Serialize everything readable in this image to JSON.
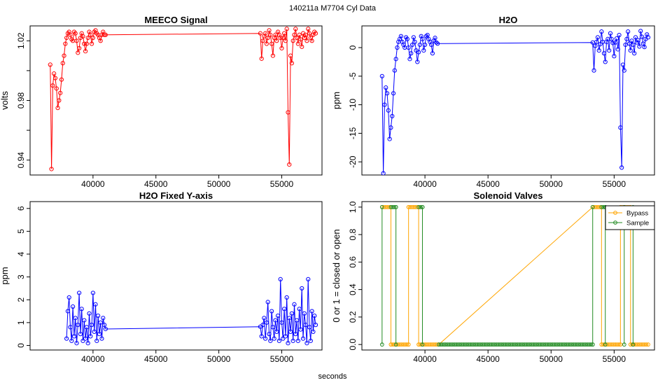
{
  "page": {
    "title": "140211a    M7704    Cyl Data",
    "xlabel": "seconds"
  },
  "chart_data": [
    {
      "id": "meeco",
      "type": "line",
      "title": "MEECO Signal",
      "xlabel": "",
      "ylabel": "volts",
      "color": "#ff0000",
      "xlim": [
        35000,
        58200
      ],
      "ylim": [
        0.93,
        1.03
      ],
      "xticks": [
        40000,
        45000,
        50000,
        55000
      ],
      "xtick_labels": [
        "40000",
        "45000",
        "50000",
        "55000"
      ],
      "yticks": [
        0.94,
        0.96,
        0.98,
        1.0,
        1.02
      ],
      "ytick_labels": [
        "0.94",
        "",
        "0.98",
        "",
        "1.02"
      ],
      "x": [
        36600,
        36700,
        36800,
        36900,
        37000,
        37100,
        37200,
        37300,
        37400,
        37500,
        37600,
        37700,
        37800,
        37900,
        38000,
        38100,
        38200,
        38300,
        38400,
        38500,
        38600,
        38700,
        38800,
        38900,
        39000,
        39100,
        39200,
        39300,
        39400,
        39500,
        39600,
        39700,
        39800,
        39900,
        40000,
        40100,
        40200,
        40300,
        40400,
        40500,
        40600,
        40700,
        40800,
        40900,
        41000,
        53300,
        53400,
        53500,
        53600,
        53700,
        53800,
        53900,
        54000,
        54100,
        54200,
        54300,
        54400,
        54500,
        54600,
        54700,
        54800,
        54900,
        55000,
        55100,
        55200,
        55300,
        55400,
        55500,
        55600,
        55700,
        55800,
        55900,
        56000,
        56100,
        56200,
        56300,
        56400,
        56500,
        56600,
        56700,
        56800,
        56900,
        57000,
        57100,
        57200,
        57300,
        57400,
        57500,
        57600,
        57700
      ],
      "y": [
        1.004,
        0.934,
        0.99,
        0.998,
        0.995,
        0.988,
        0.975,
        0.98,
        0.985,
        0.994,
        1.005,
        1.01,
        1.018,
        1.022,
        1.025,
        1.026,
        1.024,
        1.021,
        1.02,
        1.026,
        1.025,
        1.02,
        1.012,
        1.015,
        1.022,
        1.025,
        1.023,
        1.018,
        1.013,
        1.018,
        1.022,
        1.026,
        1.024,
        1.018,
        1.022,
        1.026,
        1.027,
        1.025,
        1.024,
        1.022,
        1.02,
        1.024,
        1.026,
        1.024,
        1.024,
        1.025,
        1.008,
        1.02,
        1.023,
        1.025,
        1.018,
        1.022,
        1.027,
        1.024,
        1.018,
        1.01,
        1.022,
        1.024,
        1.02,
        1.026,
        1.024,
        1.022,
        1.015,
        1.022,
        1.025,
        1.02,
        1.028,
        0.972,
        0.937,
        1.01,
        1.005,
        1.02,
        1.024,
        1.028,
        1.022,
        1.018,
        1.024,
        1.021,
        1.016,
        1.025,
        1.022,
        1.024,
        1.02,
        1.028,
        1.025,
        1.022,
        1.02,
        1.024,
        1.026,
        1.025
      ]
    },
    {
      "id": "h2o",
      "type": "line",
      "title": "H2O",
      "xlabel": "",
      "ylabel": "ppm",
      "color": "#0000ff",
      "xlim": [
        35000,
        58200
      ],
      "ylim": [
        -22.3,
        3.8
      ],
      "xticks": [
        40000,
        45000,
        50000,
        55000
      ],
      "xtick_labels": [
        "40000",
        "45000",
        "50000",
        "55000"
      ],
      "yticks": [
        -20,
        -15,
        -10,
        -5,
        0
      ],
      "ytick_labels": [
        "-20",
        "-15",
        "-10",
        "-5",
        "0"
      ],
      "x": [
        36600,
        36700,
        36800,
        36900,
        37000,
        37100,
        37200,
        37300,
        37400,
        37500,
        37600,
        37700,
        37800,
        37900,
        38000,
        38100,
        38200,
        38300,
        38400,
        38500,
        38600,
        38700,
        38800,
        38900,
        39000,
        39100,
        39200,
        39300,
        39400,
        39500,
        39600,
        39700,
        39800,
        39900,
        40000,
        40100,
        40200,
        40300,
        40400,
        40500,
        40600,
        40700,
        40800,
        40900,
        41000,
        53300,
        53400,
        53500,
        53600,
        53700,
        53800,
        53900,
        54000,
        54100,
        54200,
        54300,
        54400,
        54500,
        54600,
        54700,
        54800,
        54900,
        55000,
        55100,
        55200,
        55300,
        55400,
        55500,
        55600,
        55700,
        55800,
        55900,
        56000,
        56100,
        56200,
        56300,
        56400,
        56500,
        56600,
        56700,
        56800,
        56900,
        57000,
        57100,
        57200,
        57300,
        57400,
        57500,
        57600,
        57700
      ],
      "y": [
        -5,
        -22,
        -10,
        -7,
        -8,
        -11,
        -16,
        -14,
        -12,
        -8,
        -4,
        -2,
        0,
        1,
        1.5,
        2,
        1,
        0.5,
        0,
        1.8,
        1.5,
        0,
        -2,
        -1,
        0.5,
        1.8,
        1,
        -0.5,
        -2.5,
        -0.8,
        0.5,
        2,
        1.5,
        -0.5,
        0.5,
        2,
        2.2,
        1.5,
        1,
        0.5,
        -1,
        1.2,
        1.7,
        0.9,
        0.7,
        0.9,
        -4,
        0.3,
        1,
        1.8,
        -0.5,
        0.6,
        2.8,
        1,
        -1,
        -2.5,
        1,
        1.5,
        -0.5,
        2.5,
        1.5,
        0.8,
        -1.5,
        0.9,
        1.6,
        -0.3,
        2.2,
        -14,
        -21,
        -3,
        -4,
        0.5,
        1.5,
        2.8,
        0.7,
        -0.5,
        1.2,
        0.5,
        -1,
        1.8,
        0.9,
        1.3,
        0.2,
        2.9,
        1.9,
        0.7,
        0.1,
        1.5,
        2.3,
        1.8
      ]
    },
    {
      "id": "h2o_fixed",
      "type": "line",
      "title": "H2O Fixed Y-axis",
      "xlabel": "",
      "ylabel": "ppm",
      "color": "#0000ff",
      "xlim": [
        35000,
        58200
      ],
      "ylim": [
        -0.2,
        6.3
      ],
      "xticks": [
        40000,
        45000,
        50000,
        55000
      ],
      "xtick_labels": [
        "40000",
        "45000",
        "50000",
        "55000"
      ],
      "yticks": [
        0,
        1,
        2,
        3,
        4,
        5,
        6
      ],
      "ytick_labels": [
        "0",
        "1",
        "2",
        "3",
        "4",
        "5",
        "6"
      ],
      "x": [
        37900,
        38000,
        38100,
        38200,
        38300,
        38400,
        38500,
        38600,
        38700,
        38800,
        38900,
        39000,
        39100,
        39200,
        39300,
        39400,
        39500,
        39600,
        39700,
        39800,
        39900,
        40000,
        40100,
        40200,
        40300,
        40400,
        40500,
        40600,
        40700,
        40800,
        40900,
        41000,
        53300,
        53400,
        53500,
        53600,
        53700,
        53800,
        53900,
        54000,
        54100,
        54200,
        54300,
        54400,
        54500,
        54600,
        54700,
        54800,
        54900,
        55000,
        55100,
        55200,
        55300,
        55400,
        55500,
        55600,
        55700,
        55800,
        55900,
        56000,
        56100,
        56200,
        56300,
        56400,
        56500,
        56600,
        56700,
        56800,
        56900,
        57000,
        57100,
        57200,
        57300,
        57400,
        57500,
        57600,
        57700
      ],
      "y": [
        0.3,
        1.5,
        2.1,
        0.8,
        0.2,
        1.7,
        0.4,
        1.2,
        0.1,
        0.9,
        2.3,
        0.5,
        1.6,
        0.2,
        1.1,
        0.3,
        0.8,
        0.1,
        1.4,
        0.4,
        0.9,
        2.3,
        0.6,
        1.8,
        0.2,
        1.3,
        0.5,
        1.0,
        0.3,
        1.2,
        0.9,
        0.72,
        0.82,
        0.4,
        0.9,
        1.2,
        0.3,
        1.0,
        1.9,
        0.5,
        0.2,
        1.5,
        0.8,
        0.3,
        1.1,
        0.6,
        1.3,
        0.2,
        2.9,
        1.0,
        0.3,
        1.6,
        0.4,
        2.1,
        0.1,
        1.2,
        0.6,
        1.4,
        0.2,
        1.8,
        0.5,
        1.1,
        0.2,
        1.6,
        0.7,
        2.5,
        0.3,
        1.4,
        0.9,
        0.1,
        2.9,
        0.8,
        0.2,
        1.5,
        0.6,
        1.3,
        0.9
      ]
    },
    {
      "id": "valves",
      "type": "line",
      "title": "Solenoid Valves",
      "xlabel": "",
      "ylabel": "0 or 1 = closed or open",
      "xlim": [
        35000,
        58200
      ],
      "ylim": [
        -0.04,
        1.04
      ],
      "xticks": [
        40000,
        45000,
        50000,
        55000
      ],
      "xtick_labels": [
        "40000",
        "45000",
        "50000",
        "55000"
      ],
      "yticks": [
        0,
        0.2,
        0.4,
        0.6,
        0.8,
        1.0
      ],
      "ytick_labels": [
        "0.0",
        "0.2",
        "0.4",
        "0.6",
        "0.8",
        "1.0"
      ],
      "legend": {
        "position": "top-right",
        "entries": [
          "Bypass",
          "Sample"
        ]
      },
      "series": [
        {
          "name": "Bypass",
          "color": "#ffa500",
          "segments": [
            {
              "x": [
                36600,
                37300
              ],
              "y": [
                1,
                1
              ]
            },
            {
              "x": [
                37300,
                37300
              ],
              "y": [
                1,
                0
              ]
            },
            {
              "x": [
                37300,
                38700
              ],
              "y": [
                0,
                0
              ]
            },
            {
              "x": [
                38700,
                38700
              ],
              "y": [
                0,
                1
              ]
            },
            {
              "x": [
                38700,
                39500
              ],
              "y": [
                1,
                1
              ]
            },
            {
              "x": [
                39500,
                39500
              ],
              "y": [
                1,
                0
              ]
            },
            {
              "x": [
                39500,
                41100
              ],
              "y": [
                0,
                0
              ]
            },
            {
              "x": [
                41100,
                53300
              ],
              "y": [
                0,
                1
              ]
            },
            {
              "x": [
                53300,
                54000
              ],
              "y": [
                1,
                1
              ]
            },
            {
              "x": [
                54000,
                54000
              ],
              "y": [
                1,
                0
              ]
            },
            {
              "x": [
                54000,
                55500
              ],
              "y": [
                0,
                0
              ]
            },
            {
              "x": [
                55500,
                55500
              ],
              "y": [
                0,
                1
              ]
            },
            {
              "x": [
                55500,
                56300
              ],
              "y": [
                1,
                1
              ]
            },
            {
              "x": [
                56300,
                56300
              ],
              "y": [
                1,
                0
              ]
            },
            {
              "x": [
                56300,
                57700
              ],
              "y": [
                0,
                0
              ]
            }
          ]
        },
        {
          "name": "Sample",
          "color": "#228b22",
          "segments": [
            {
              "x": [
                36600,
                36600
              ],
              "y": [
                0,
                1
              ]
            },
            {
              "x": [
                37300,
                37700
              ],
              "y": [
                1,
                1
              ]
            },
            {
              "x": [
                37700,
                37700
              ],
              "y": [
                1,
                0
              ]
            },
            {
              "x": [
                39500,
                39800
              ],
              "y": [
                1,
                1
              ]
            },
            {
              "x": [
                39800,
                39800
              ],
              "y": [
                1,
                0
              ]
            },
            {
              "x": [
                41100,
                53300
              ],
              "y": [
                0,
                0
              ]
            },
            {
              "x": [
                53300,
                53300
              ],
              "y": [
                0,
                1
              ]
            },
            {
              "x": [
                54000,
                54300
              ],
              "y": [
                1,
                1
              ]
            },
            {
              "x": [
                54300,
                54300
              ],
              "y": [
                1,
                0
              ]
            },
            {
              "x": [
                55800,
                55800
              ],
              "y": [
                0,
                1
              ]
            },
            {
              "x": [
                56500,
                56500
              ],
              "y": [
                0,
                1
              ]
            }
          ]
        }
      ]
    }
  ]
}
